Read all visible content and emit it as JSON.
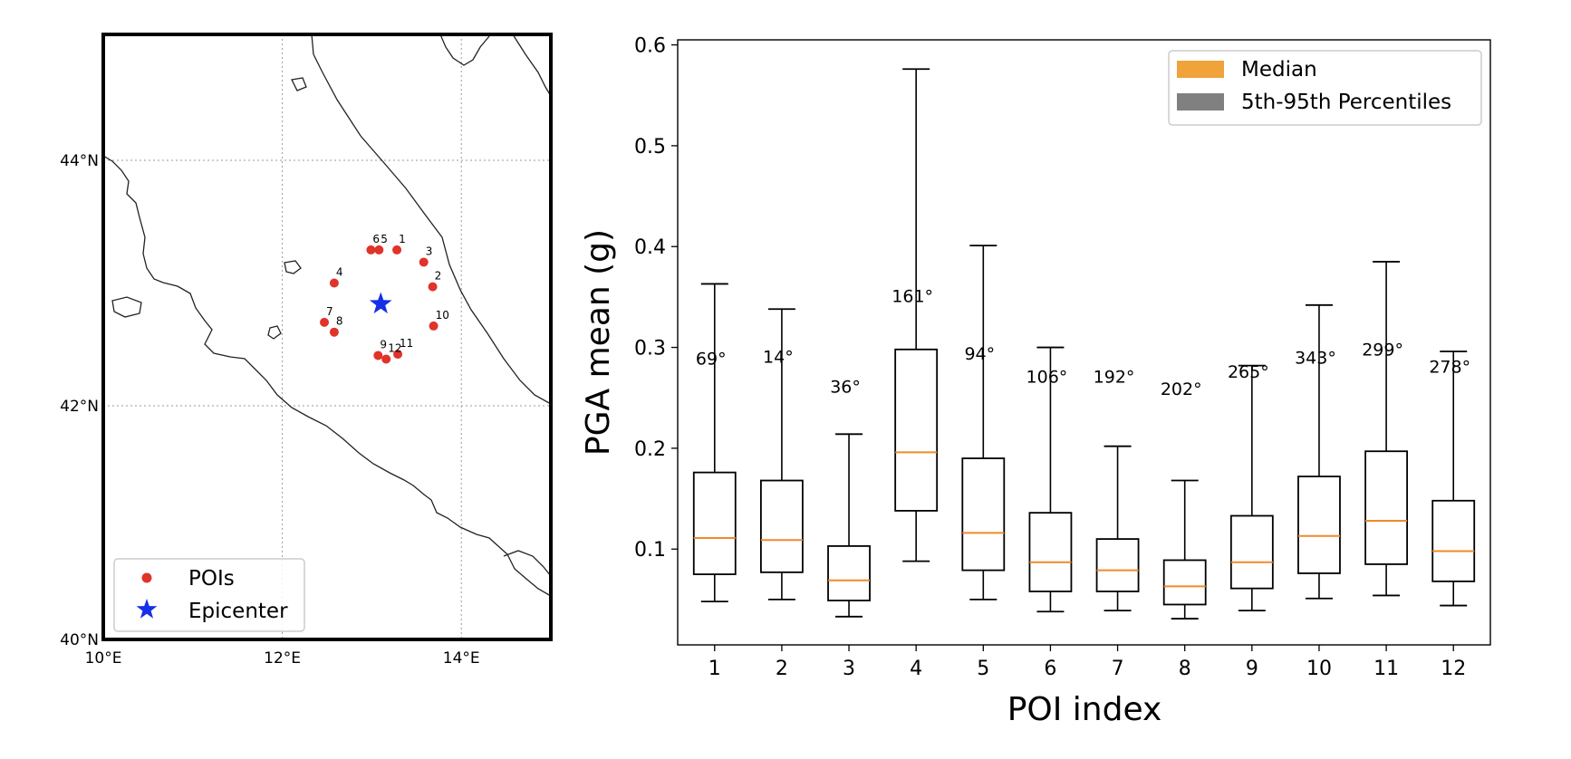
{
  "colors": {
    "median": "#f0a33a",
    "percentile": "#808080",
    "poi": "#e0332a",
    "epicenter": "#1530e6",
    "median_line": "#f08a2a"
  },
  "map": {
    "x_ticks": [
      "10°E",
      "12°E",
      "14°E"
    ],
    "y_ticks": [
      "44°N",
      "42°N",
      "40°N"
    ],
    "extent": {
      "lon": [
        10,
        15
      ],
      "lat": [
        40,
        45
      ]
    },
    "legend": {
      "pois": "POIs",
      "epicenter": "Epicenter"
    },
    "epicenter": {
      "lon": 13.1,
      "lat": 42.83
    },
    "pois": [
      {
        "label": "1",
        "lon": 13.28,
        "lat": 43.27
      },
      {
        "label": "2",
        "lon": 13.68,
        "lat": 42.97
      },
      {
        "label": "3",
        "lon": 13.58,
        "lat": 43.17
      },
      {
        "label": "4",
        "lon": 12.58,
        "lat": 43.0
      },
      {
        "label": "5",
        "lon": 13.08,
        "lat": 43.27
      },
      {
        "label": "6",
        "lon": 12.99,
        "lat": 43.27
      },
      {
        "label": "7",
        "lon": 12.47,
        "lat": 42.68
      },
      {
        "label": "8",
        "lon": 12.58,
        "lat": 42.6
      },
      {
        "label": "9",
        "lon": 13.07,
        "lat": 42.41
      },
      {
        "label": "10",
        "lon": 13.69,
        "lat": 42.65
      },
      {
        "label": "11",
        "lon": 13.29,
        "lat": 42.42
      },
      {
        "label": "12",
        "lon": 13.16,
        "lat": 42.38
      }
    ]
  },
  "chart_data": {
    "type": "box",
    "xlabel": "POI index",
    "ylabel": "PGA mean (g)",
    "ylim": [
      0.005,
      0.605
    ],
    "y_ticks": [
      0.1,
      0.2,
      0.3,
      0.4,
      0.5,
      0.6
    ],
    "legend": {
      "median": "Median",
      "percentile": "5th-95th Percentiles",
      "position": "top-right"
    },
    "categories": [
      "1",
      "2",
      "3",
      "4",
      "5",
      "6",
      "7",
      "8",
      "9",
      "10",
      "11",
      "12"
    ],
    "boxes": [
      {
        "p5": 0.048,
        "q1": 0.075,
        "median": 0.111,
        "q3": 0.176,
        "p95": 0.363,
        "angle": "69°",
        "angle_y": 0.283
      },
      {
        "p5": 0.05,
        "q1": 0.077,
        "median": 0.109,
        "q3": 0.168,
        "p95": 0.338,
        "angle": "14°",
        "angle_y": 0.285
      },
      {
        "p5": 0.033,
        "q1": 0.049,
        "median": 0.069,
        "q3": 0.103,
        "p95": 0.214,
        "angle": "36°",
        "angle_y": 0.255
      },
      {
        "p5": 0.088,
        "q1": 0.138,
        "median": 0.196,
        "q3": 0.298,
        "p95": 0.576,
        "angle": "161°",
        "angle_y": 0.345
      },
      {
        "p5": 0.05,
        "q1": 0.079,
        "median": 0.116,
        "q3": 0.19,
        "p95": 0.401,
        "angle": "94°",
        "angle_y": 0.288
      },
      {
        "p5": 0.038,
        "q1": 0.058,
        "median": 0.087,
        "q3": 0.136,
        "p95": 0.3,
        "angle": "106°",
        "angle_y": 0.265
      },
      {
        "p5": 0.039,
        "q1": 0.058,
        "median": 0.079,
        "q3": 0.11,
        "p95": 0.202,
        "angle": "192°",
        "angle_y": 0.265
      },
      {
        "p5": 0.031,
        "q1": 0.045,
        "median": 0.063,
        "q3": 0.089,
        "p95": 0.168,
        "angle": "202°",
        "angle_y": 0.253
      },
      {
        "p5": 0.039,
        "q1": 0.061,
        "median": 0.087,
        "q3": 0.133,
        "p95": 0.282,
        "angle": "265°",
        "angle_y": 0.27
      },
      {
        "p5": 0.051,
        "q1": 0.076,
        "median": 0.113,
        "q3": 0.172,
        "p95": 0.342,
        "angle": "343°",
        "angle_y": 0.284
      },
      {
        "p5": 0.054,
        "q1": 0.085,
        "median": 0.128,
        "q3": 0.197,
        "p95": 0.385,
        "angle": "299°",
        "angle_y": 0.292
      },
      {
        "p5": 0.044,
        "q1": 0.068,
        "median": 0.098,
        "q3": 0.148,
        "p95": 0.296,
        "angle": "278°",
        "angle_y": 0.275
      }
    ]
  }
}
